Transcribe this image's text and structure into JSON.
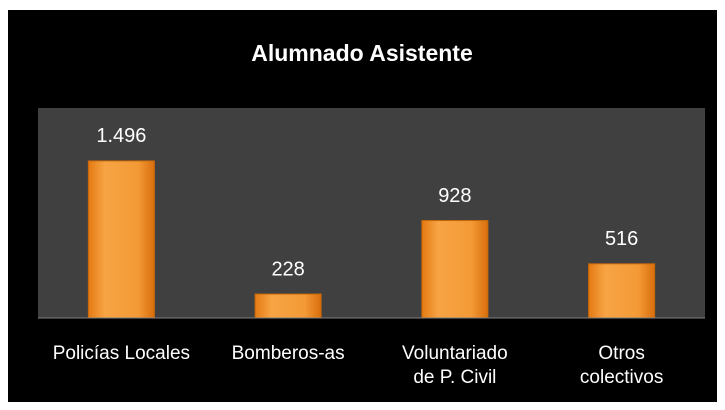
{
  "chart_data": {
    "type": "bar",
    "title": "Alumnado Asistente",
    "categories": [
      "Policías Locales",
      "Bomberos-as",
      "Voluntariado de P. Civil",
      "Otros colectivos"
    ],
    "values": [
      1496,
      228,
      928,
      516
    ],
    "value_labels": [
      "1.496",
      "228",
      "928",
      "516"
    ],
    "color": "#f0902a",
    "ylim": [
      0,
      2000
    ]
  }
}
